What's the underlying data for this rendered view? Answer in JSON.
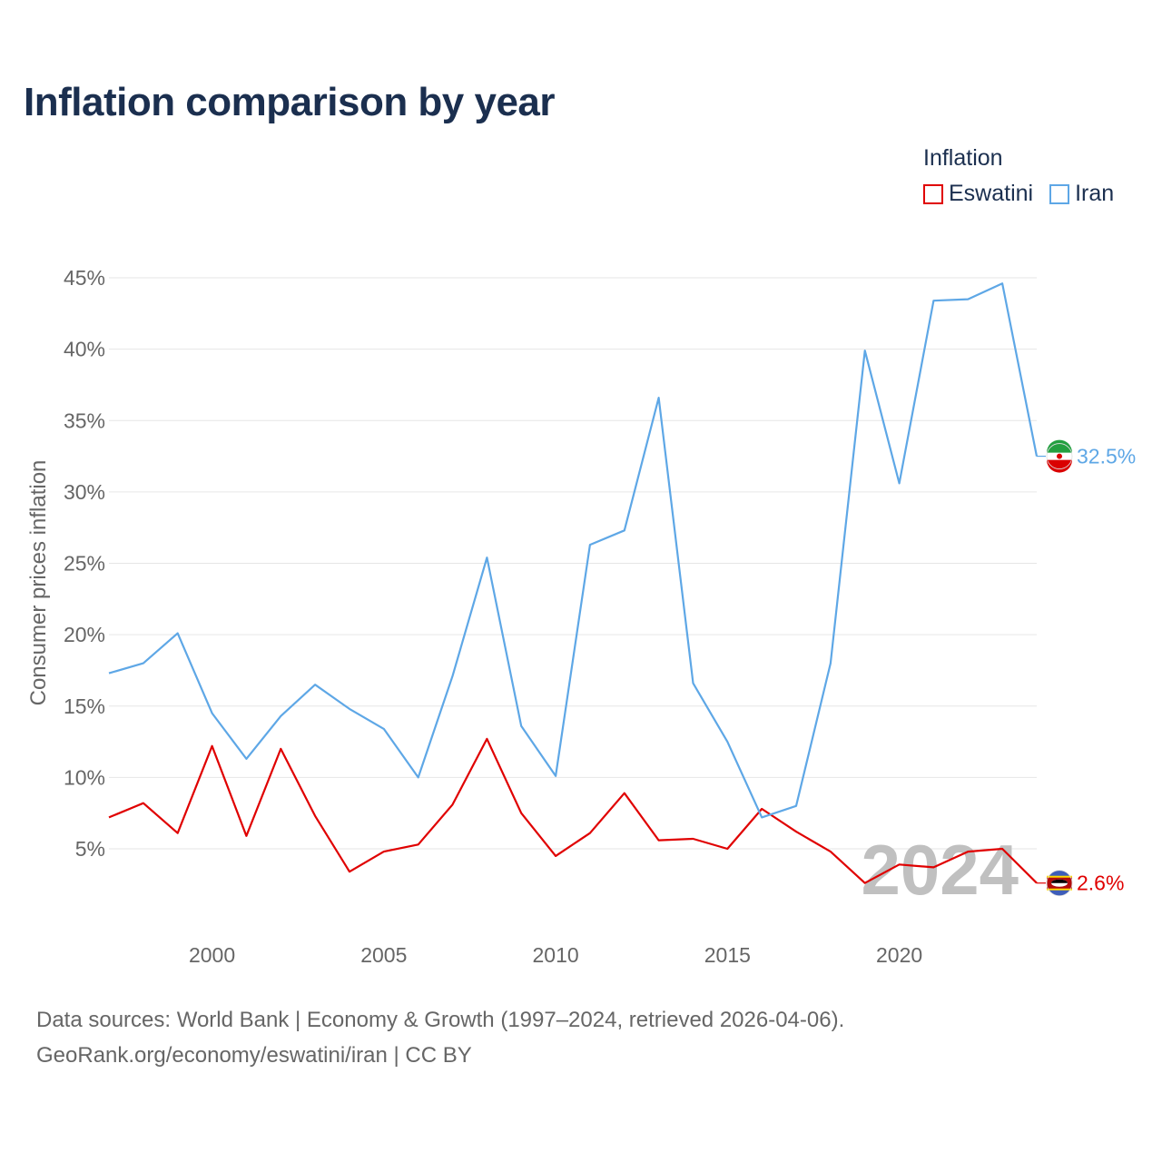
{
  "title": "Inflation comparison by year",
  "legend": {
    "title": "Inflation",
    "items": [
      {
        "label": "Eswatini",
        "color": "#e00000"
      },
      {
        "label": "Iran",
        "color": "#5ea7e6"
      }
    ]
  },
  "chart_data": {
    "type": "line",
    "title": "Inflation comparison by year",
    "xlabel": "",
    "ylabel": "Consumer prices inflation",
    "xlim": [
      1997,
      2024
    ],
    "ylim": [
      0,
      45
    ],
    "grid": true,
    "legend_position": "top-right",
    "x": [
      1997,
      1998,
      1999,
      2000,
      2001,
      2002,
      2003,
      2004,
      2005,
      2006,
      2007,
      2008,
      2009,
      2010,
      2011,
      2012,
      2013,
      2014,
      2015,
      2016,
      2017,
      2018,
      2019,
      2020,
      2021,
      2022,
      2023,
      2024
    ],
    "y_ticks": [
      5,
      10,
      15,
      20,
      25,
      30,
      35,
      40,
      45
    ],
    "y_tick_labels": [
      "5%",
      "10%",
      "15%",
      "20%",
      "25%",
      "30%",
      "35%",
      "40%",
      "45%"
    ],
    "x_ticks": [
      2000,
      2005,
      2010,
      2015,
      2020
    ],
    "x_tick_labels": [
      "2000",
      "2005",
      "2010",
      "2015",
      "2020"
    ],
    "series": [
      {
        "name": "Eswatini",
        "color": "#e00000",
        "end_label": "2.6%",
        "values": [
          7.2,
          8.2,
          6.1,
          12.2,
          5.9,
          12.0,
          7.3,
          3.4,
          4.8,
          5.3,
          8.1,
          12.7,
          7.5,
          4.5,
          6.1,
          8.9,
          5.6,
          5.7,
          5.0,
          7.8,
          6.2,
          4.8,
          2.6,
          3.9,
          3.7,
          4.8,
          5.0,
          2.6
        ]
      },
      {
        "name": "Iran",
        "color": "#5ea7e6",
        "end_label": "32.5%",
        "values": [
          17.3,
          18.0,
          20.1,
          14.5,
          11.3,
          14.3,
          16.5,
          14.8,
          13.4,
          10.0,
          17.1,
          25.4,
          13.6,
          10.1,
          26.3,
          27.3,
          36.6,
          16.6,
          12.5,
          7.2,
          8.0,
          18.0,
          39.9,
          30.6,
          43.4,
          43.5,
          44.6,
          32.5
        ]
      }
    ],
    "annotation": "2024"
  },
  "source": {
    "line1": "Data sources: World Bank | Economy & Growth (1997–2024, retrieved 2026-04-06).",
    "line2": "GeoRank.org/economy/eswatini/iran | CC BY"
  }
}
